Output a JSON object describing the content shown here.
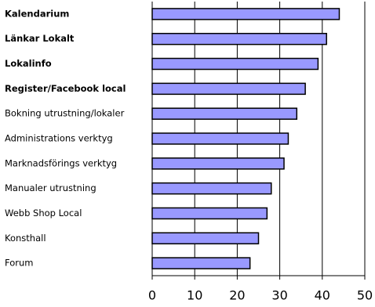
{
  "chart_data": {
    "type": "barh",
    "categories": [
      "Kalendarium",
      "Länkar Lokalt",
      "Lokalinfo",
      "Register/Facebook local",
      "Bokning utrustning/lokaler",
      "Administrations verktyg",
      "Marknadsförings verktyg",
      "Manualer utrustning",
      "Webb Shop Local",
      "Konsthall",
      "Forum"
    ],
    "values": [
      44,
      41,
      39,
      36,
      34,
      32,
      31,
      28,
      27,
      25,
      23
    ],
    "bold": [
      true,
      true,
      true,
      true,
      false,
      false,
      false,
      false,
      false,
      false,
      false
    ],
    "color": "#9999ff",
    "xlim": [
      0,
      50
    ],
    "xticks": [
      0,
      10,
      20,
      30,
      40,
      50
    ],
    "grid": true
  }
}
